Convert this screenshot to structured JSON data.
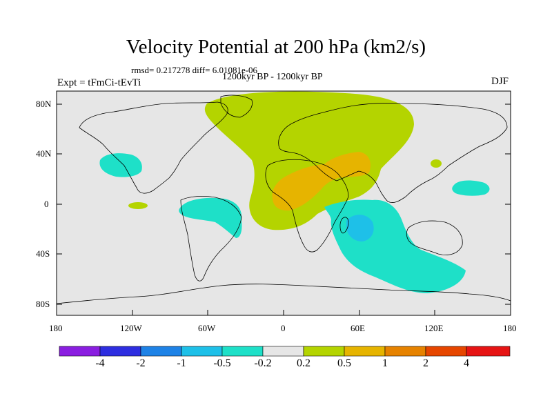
{
  "title": "Velocity Potential at 200 hPa (km2/s)",
  "stats": "rmsd= 0.217278 diff= 6.01081e-06",
  "period": "1200kyr BP - 1200kyr BP",
  "experiment": "Expt = tFmCi-tEvTi",
  "season": "DJF",
  "lat_ticks": [
    "80N",
    "40N",
    "0",
    "40S",
    "80S"
  ],
  "lon_ticks": [
    "180",
    "120W",
    "60W",
    "0",
    "60E",
    "120E",
    "180"
  ],
  "colorbar": {
    "labels": [
      "-4",
      "-2",
      "-1",
      "-0.5",
      "-0.2",
      "0.2",
      "0.5",
      "1",
      "2",
      "4"
    ],
    "colors": [
      "#8a1ee0",
      "#2e2ee0",
      "#1e82e6",
      "#1ec0e8",
      "#1ee0c8",
      "#e6e6e6",
      "#b4d400",
      "#e6b400",
      "#e68200",
      "#e64600",
      "#e61414"
    ]
  },
  "colors": {
    "ocean": "#e6e6e6",
    "positive_weak": "#b4d400",
    "positive_mid": "#e6b400",
    "negative_weak": "#1ee0c8",
    "negative_mid": "#1ec0e8"
  }
}
